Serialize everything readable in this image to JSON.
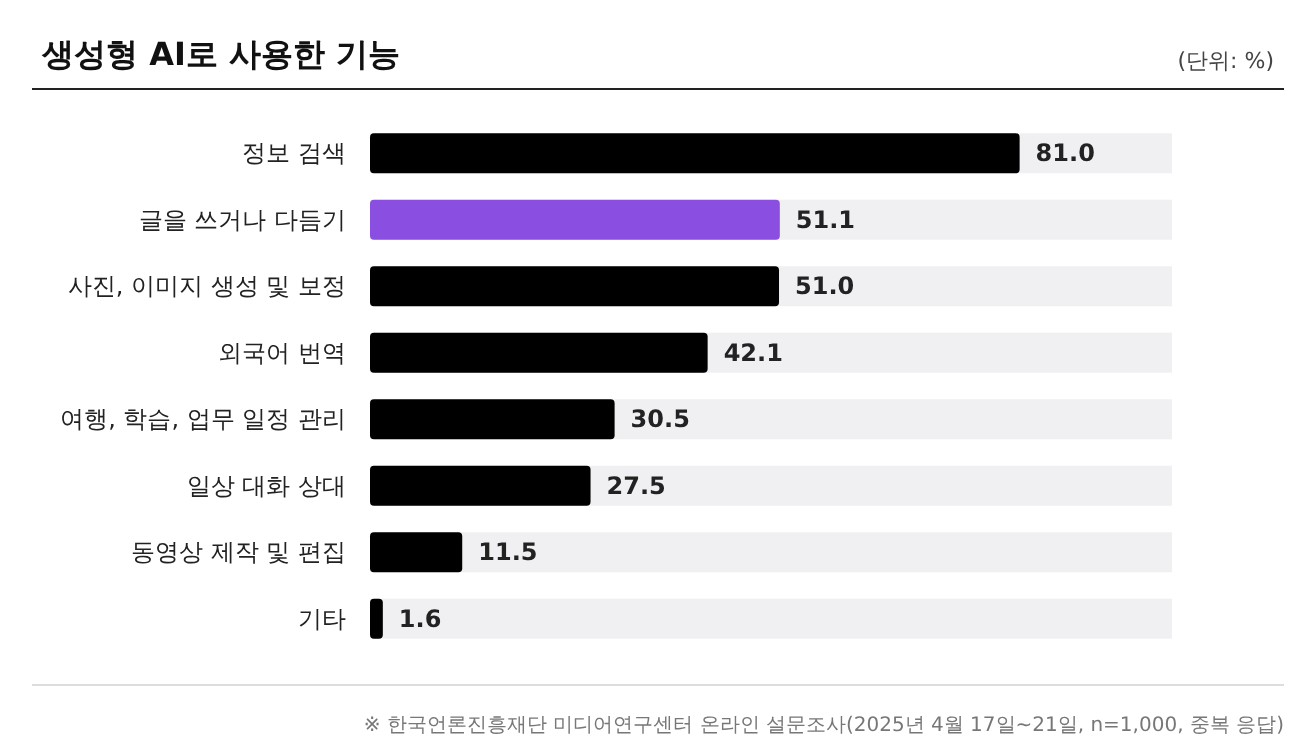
{
  "chart_data": {
    "type": "bar",
    "orientation": "horizontal",
    "title": "생성형 AI로 사용한 기능",
    "subtitle": "(단위: %)",
    "categories": [
      "정보 검색",
      "글을 쓰거나 다듬기",
      "사진, 이미지 생성 및 보정",
      "외국어 번역",
      "여행, 학습, 업무 일정 관리",
      "일상 대화 상대",
      "동영상 제작 및 편집",
      "기타"
    ],
    "values": [
      81.0,
      51.1,
      51.0,
      42.1,
      30.5,
      27.5,
      11.5,
      1.6
    ],
    "colors": [
      "#000000",
      "#8a4fe0",
      "#000000",
      "#000000",
      "#000000",
      "#000000",
      "#000000",
      "#000000"
    ],
    "value_labels": [
      "81.0",
      "51.1",
      "51.0",
      "42.1",
      "30.5",
      "27.5",
      "11.5",
      "1.6"
    ],
    "tick_labels": "y",
    "grid": false,
    "annotations": [
      "※ 한국언론진흥재단 미디어연구센터 온라인 설문조사(2025년 4월 17일~21일, n=1,000, 중복 응답)"
    ]
  }
}
